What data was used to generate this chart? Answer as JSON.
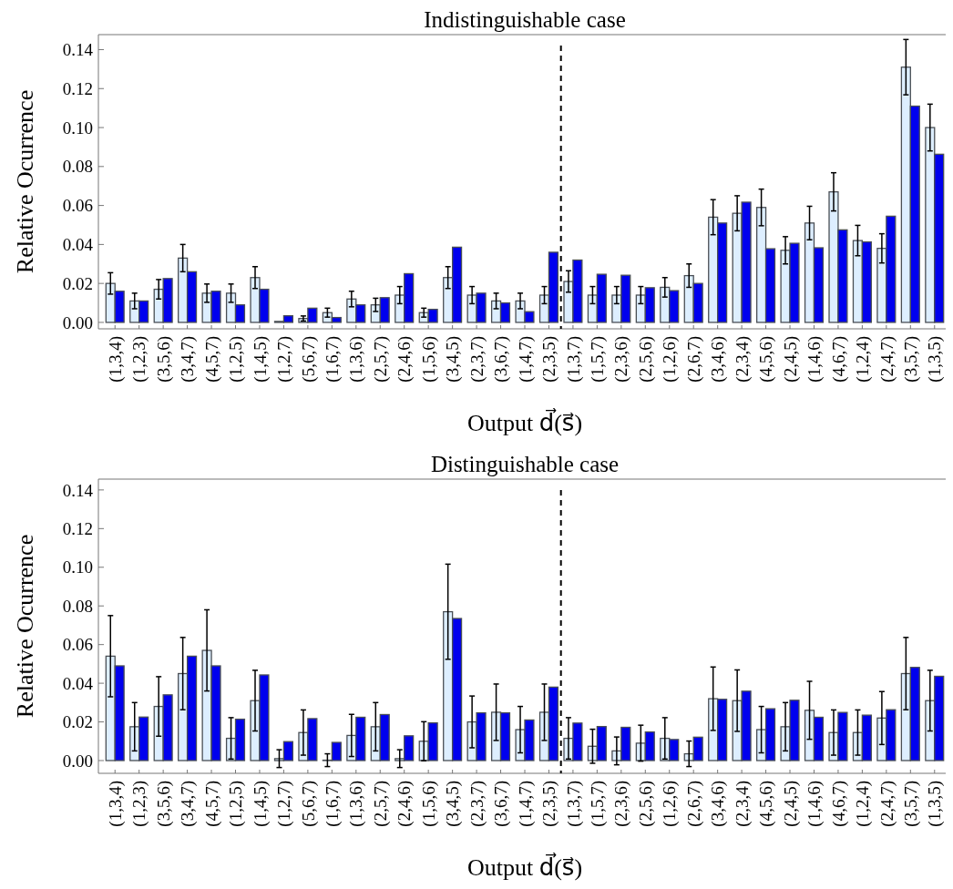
{
  "chart_data": [
    {
      "type": "bar",
      "title": "Indistinguishable case",
      "xlabel": "Output d⃗(s⃗)",
      "ylabel": "Relative Ocurrence",
      "categories": [
        "(1,3,4)",
        "(1,2,3)",
        "(3,5,6)",
        "(3,4,7)",
        "(4,5,7)",
        "(1,2,5)",
        "(1,4,5)",
        "(1,2,7)",
        "(5,6,7)",
        "(1,6,7)",
        "(1,3,6)",
        "(2,5,7)",
        "(2,4,6)",
        "(1,5,6)",
        "(3,4,5)",
        "(2,3,7)",
        "(3,6,7)",
        "(1,4,7)",
        "(2,3,5)",
        "(1,3,7)",
        "(1,5,7)",
        "(2,3,6)",
        "(2,5,6)",
        "(1,2,6)",
        "(2,6,7)",
        "(3,4,6)",
        "(2,3,4)",
        "(4,5,6)",
        "(2,4,5)",
        "(1,4,6)",
        "(4,6,7)",
        "(1,2,4)",
        "(2,4,7)",
        "(3,5,7)",
        "(1,3,5)"
      ],
      "series": [
        {
          "color": "#ddeeff",
          "values": [
            0.02,
            0.011,
            0.017,
            0.033,
            0.015,
            0.015,
            0.023,
            0.0005,
            0.002,
            0.005,
            0.012,
            0.009,
            0.014,
            0.005,
            0.023,
            0.014,
            0.011,
            0.011,
            0.014,
            0.021,
            0.014,
            0.014,
            0.014,
            0.018,
            0.024,
            0.054,
            0.056,
            0.059,
            0.037,
            0.051,
            0.067,
            0.042,
            0.038,
            0.131,
            0.1
          ],
          "errors": [
            0.0055,
            0.004,
            0.005,
            0.007,
            0.0047,
            0.0047,
            0.0056,
            null,
            0.0013,
            0.0023,
            0.004,
            0.0034,
            0.0044,
            0.0023,
            0.0056,
            0.0044,
            0.004,
            0.004,
            0.0044,
            0.0055,
            0.0044,
            0.0044,
            0.0044,
            0.005,
            0.006,
            0.009,
            0.009,
            0.0094,
            0.007,
            0.0086,
            0.0098,
            0.0078,
            0.0075,
            0.0142,
            0.012
          ]
        },
        {
          "color": "#0000ee",
          "values": [
            0.016,
            0.011,
            0.0225,
            0.026,
            0.016,
            0.009,
            0.017,
            0.0034,
            0.0073,
            0.0025,
            0.009,
            0.0127,
            0.025,
            0.0067,
            0.0386,
            0.015,
            0.01,
            0.0055,
            0.036,
            0.032,
            0.0247,
            0.0242,
            0.0178,
            0.0163,
            0.02,
            0.051,
            0.0617,
            0.0378,
            0.0406,
            0.0383,
            0.0475,
            0.0413,
            0.0545,
            0.111,
            0.0863
          ]
        }
      ],
      "ylim": [
        -0.0033,
        0.1477
      ],
      "yticks": [
        {
          "value": 0,
          "label": "0.00"
        },
        {
          "value": 0.02,
          "label": "0.02"
        },
        {
          "value": 0.04,
          "label": "0.04"
        },
        {
          "value": 0.06,
          "label": "0.06"
        },
        {
          "value": 0.08,
          "label": "0.08"
        },
        {
          "value": 0.1,
          "label": "0.10"
        },
        {
          "value": 0.12,
          "label": "0.12"
        },
        {
          "value": 0.14,
          "label": "0.14"
        }
      ]
    },
    {
      "type": "bar",
      "title": "Distinguishable case",
      "xlabel": "Output d⃗(s⃗)",
      "ylabel": "Relative Ocurrence",
      "categories": [
        "(1,3,4)",
        "(1,2,3)",
        "(3,5,6)",
        "(3,4,7)",
        "(4,5,7)",
        "(1,2,5)",
        "(1,4,5)",
        "(1,2,7)",
        "(5,6,7)",
        "(1,6,7)",
        "(1,3,6)",
        "(2,5,7)",
        "(2,4,6)",
        "(1,5,6)",
        "(3,4,5)",
        "(2,3,7)",
        "(3,6,7)",
        "(1,4,7)",
        "(2,3,5)",
        "(1,3,7)",
        "(1,5,7)",
        "(2,3,6)",
        "(2,5,6)",
        "(1,2,6)",
        "(2,6,7)",
        "(3,4,6)",
        "(2,3,4)",
        "(4,5,6)",
        "(2,4,5)",
        "(1,4,6)",
        "(4,6,7)",
        "(1,2,4)",
        "(2,4,7)",
        "(3,5,7)",
        "(1,3,5)"
      ],
      "series": [
        {
          "color": "#ddeeff",
          "values": [
            0.054,
            0.0175,
            0.028,
            0.045,
            0.057,
            0.0115,
            0.031,
            0.001,
            0.0145,
            0.0002,
            0.013,
            0.0175,
            0.001,
            0.01,
            0.077,
            0.02,
            0.025,
            0.016,
            0.025,
            0.0115,
            0.0074,
            0.005,
            0.009,
            0.0115,
            0.0035,
            0.032,
            0.031,
            0.016,
            0.0175,
            0.026,
            0.0145,
            0.0145,
            0.022,
            0.045,
            0.031
          ],
          "errors": [
            0.021,
            0.0125,
            0.0154,
            0.0187,
            0.021,
            0.0107,
            0.0157,
            0.0046,
            0.0117,
            0.0033,
            0.0109,
            0.0125,
            0.0046,
            0.0101,
            0.0246,
            0.0134,
            0.0146,
            0.012,
            0.0146,
            0.0107,
            0.0088,
            0.0072,
            0.0093,
            0.0107,
            0.0066,
            0.0164,
            0.0159,
            0.012,
            0.0125,
            0.015,
            0.0117,
            0.0117,
            0.0137,
            0.0187,
            0.0157
          ]
        },
        {
          "color": "#0000ee",
          "values": [
            0.049,
            0.0225,
            0.034,
            0.054,
            0.049,
            0.0214,
            0.0443,
            0.0098,
            0.0217,
            0.0094,
            0.0224,
            0.0238,
            0.0128,
            0.0195,
            0.0735,
            0.0247,
            0.0247,
            0.021,
            0.038,
            0.0194,
            0.0176,
            0.0172,
            0.0148,
            0.0109,
            0.0121,
            0.0317,
            0.0359,
            0.0268,
            0.0312,
            0.0224,
            0.0249,
            0.0235,
            0.0263,
            0.0482,
            0.0436
          ]
        }
      ],
      "ylim": [
        -0.0066,
        0.1456
      ],
      "yticks": [
        {
          "value": 0,
          "label": "0.00"
        },
        {
          "value": 0.02,
          "label": "0.02"
        },
        {
          "value": 0.04,
          "label": "0.04"
        },
        {
          "value": 0.06,
          "label": "0.06"
        },
        {
          "value": 0.08,
          "label": "0.08"
        },
        {
          "value": 0.1,
          "label": "0.10"
        },
        {
          "value": 0.12,
          "label": "0.12"
        },
        {
          "value": 0.14,
          "label": "0.14"
        }
      ]
    }
  ]
}
